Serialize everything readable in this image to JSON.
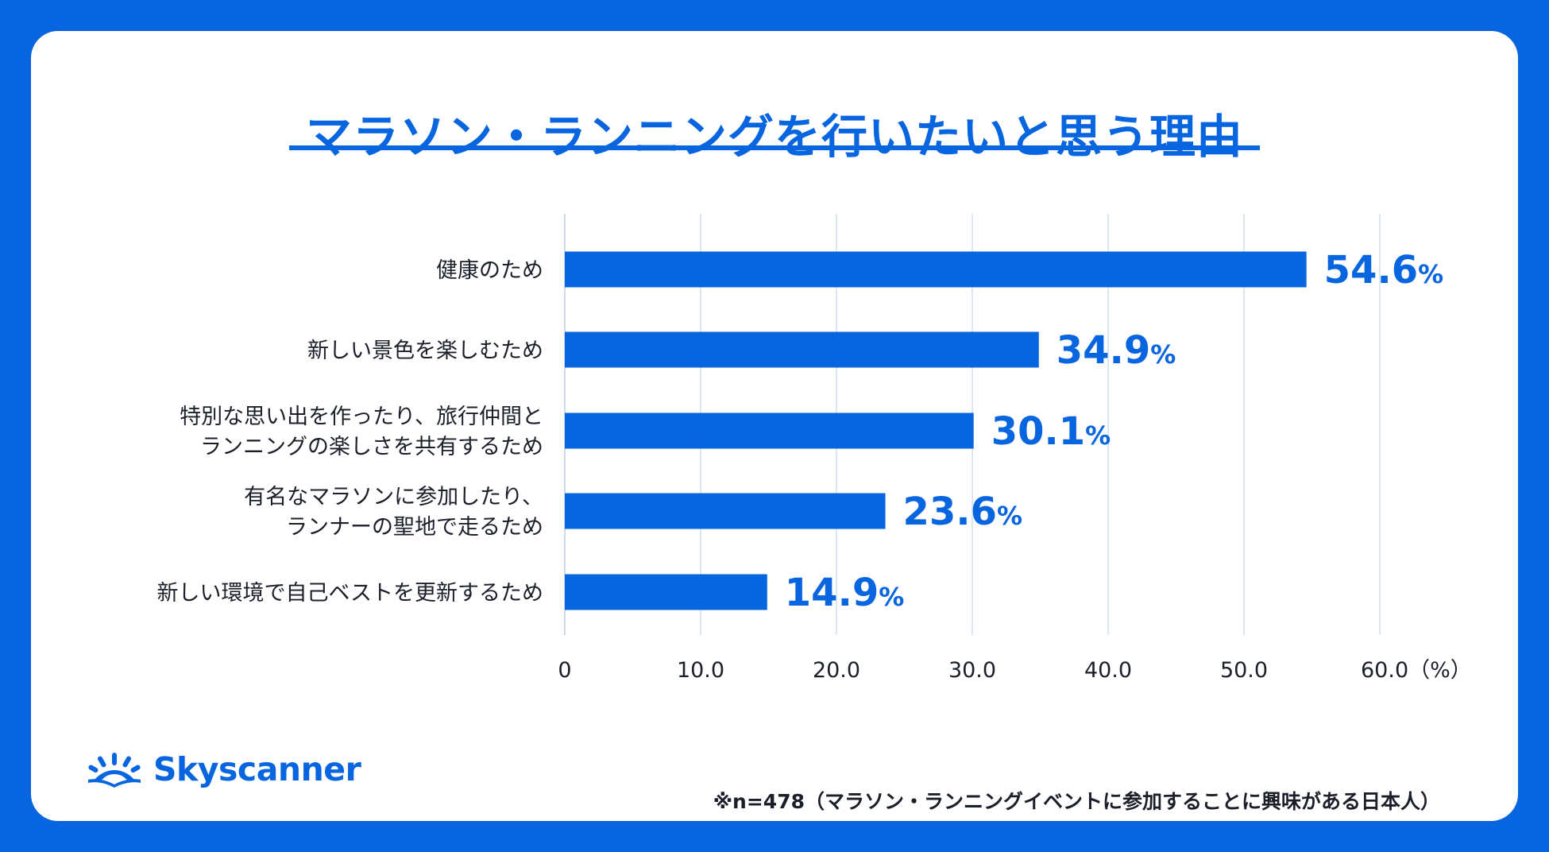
{
  "title": "マラソン・ランニングを行いたいと思う理由",
  "brand": {
    "name": "Skyscanner",
    "color": "#0865e0",
    "icon": "sunrise-logo-icon"
  },
  "footnote": "※n=478（マラソン・ランニングイベントに参加することに興味がある日本人）",
  "colors": {
    "accent": "#0865e0",
    "background": "#0865e0",
    "card": "#ffffff",
    "gridline": "#dbe8f3"
  },
  "chart_data": {
    "type": "bar",
    "orientation": "horizontal",
    "title": "マラソン・ランニングを行いたいと思う理由",
    "categories": [
      [
        "健康のため"
      ],
      [
        "新しい景色を楽しむため"
      ],
      [
        "特別な思い出を作ったり、旅行仲間と",
        "ランニングの楽しさを共有するため"
      ],
      [
        "有名なマラソンに参加したり、",
        "ランナーの聖地で走るため"
      ],
      [
        "新しい環境で自己ベストを更新するため"
      ]
    ],
    "values": [
      54.6,
      34.9,
      30.1,
      23.6,
      14.9
    ],
    "value_labels": [
      "54.6",
      "34.9",
      "30.1",
      "23.6",
      "14.9"
    ],
    "value_suffix": "%",
    "xlim": [
      0,
      60
    ],
    "ticks": [
      0,
      10,
      20,
      30,
      40,
      50,
      60
    ],
    "tick_labels": [
      "0",
      "10.0",
      "20.0",
      "30.0",
      "40.0",
      "50.0",
      "60.0（%）"
    ],
    "xlabel": "",
    "ylabel": "",
    "grid": true,
    "legend": "none"
  }
}
